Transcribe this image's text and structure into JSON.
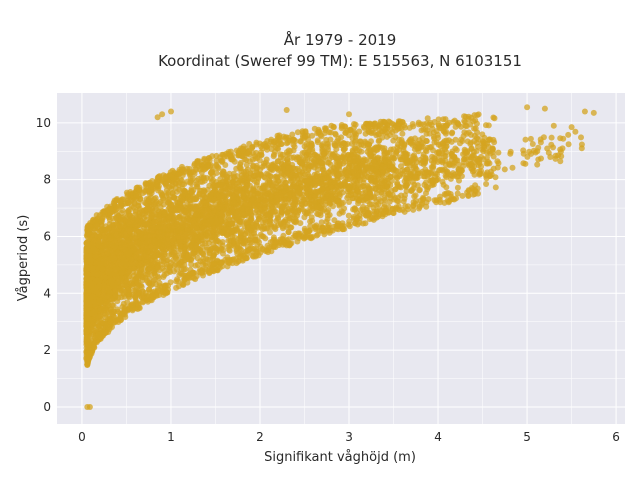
{
  "chart_data": {
    "type": "scatter",
    "title_line1": "År 1979 - 2019",
    "title_line2": "Koordinat (Sweref 99 TM): E 515563, N 6103151",
    "xlabel": "Signifikant våghöjd (m)",
    "ylabel": "Vågperiod (s)",
    "xlim": [
      -0.28,
      6.1
    ],
    "ylim": [
      -0.6,
      11.05
    ],
    "xticks": [
      0,
      1,
      2,
      3,
      4,
      5,
      6
    ],
    "yticks": [
      0,
      2,
      4,
      6,
      8,
      10
    ],
    "grid": true,
    "plot_background": "#e8e8f0",
    "grid_color": "#ffffff",
    "marker_color": "#d4a420",
    "marker_opacity": 0.75,
    "series": [
      {
        "description_of_cloud": "dense scatter; lower bound ≈ 1.3+3.0*sqrt(Hs), upper bound ≈ 5.6+2.3*sqrt(Hs) rising to ~10.5",
        "sample_points": {
          "x": [
            0.06,
            0.08,
            0.1,
            0.15,
            0.2,
            0.3,
            0.4,
            0.5,
            0.7,
            0.9,
            1.0,
            1.2,
            1.5,
            1.8,
            2.0,
            2.3,
            2.6,
            3.0,
            3.3,
            3.6,
            3.9,
            4.2,
            4.5,
            4.8,
            5.0,
            5.1,
            5.3,
            5.5,
            5.65,
            5.75
          ],
          "y": [
            0.0,
            0.0,
            1.3,
            1.7,
            2.0,
            2.5,
            3.0,
            3.2,
            3.6,
            4.0,
            4.2,
            4.5,
            5.0,
            5.4,
            5.7,
            6.0,
            6.4,
            6.8,
            7.2,
            7.6,
            8.0,
            8.3,
            8.7,
            9.0,
            9.3,
            10.5,
            10.0,
            9.8,
            10.4,
            10.3
          ]
        }
      }
    ],
    "outliers": {
      "x": [
        0.06,
        0.09,
        0.9,
        1.0,
        0.85,
        2.3,
        3.0,
        5.0,
        5.2,
        5.5,
        5.65,
        5.75,
        5.3
      ],
      "y": [
        0.0,
        0.0,
        10.3,
        10.4,
        10.2,
        10.45,
        10.3,
        10.55,
        10.5,
        9.85,
        10.4,
        10.35,
        9.9
      ]
    }
  }
}
